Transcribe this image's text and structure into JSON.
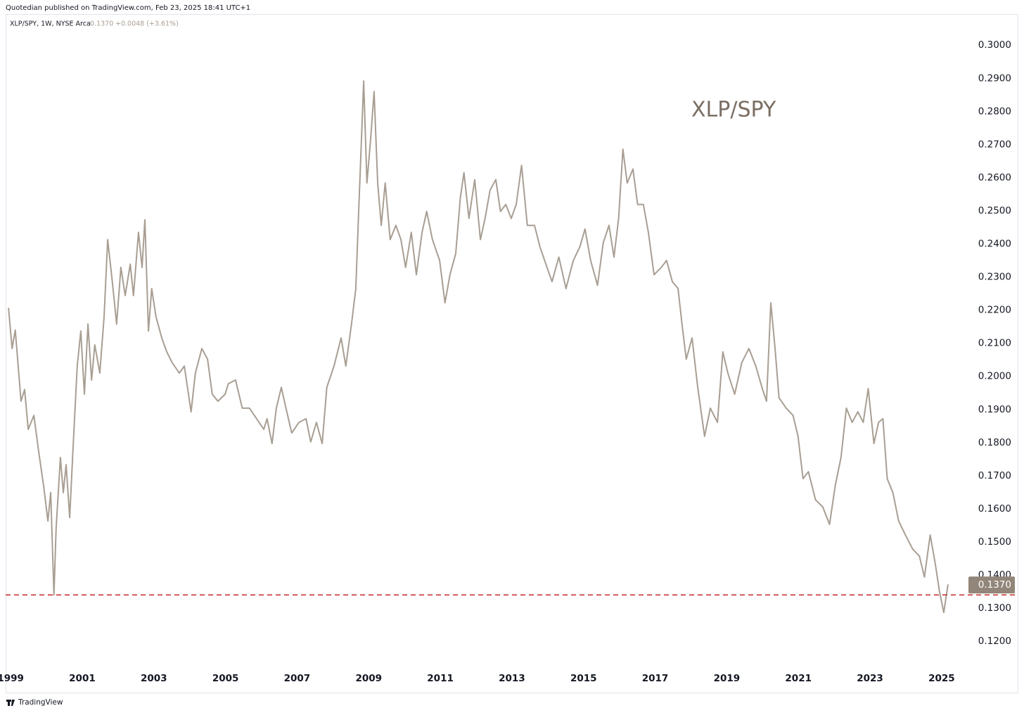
{
  "chart_data": {
    "type": "line",
    "header": {
      "publisher": "Quotedian published on TradingView.com, Feb 23, 2025 18:41 UTC+1",
      "symbol": "XLP/SPY, 1W, NYSE Arca",
      "change": "+0.0048 (+3.61%)"
    },
    "annotation": "XLP/SPY",
    "footer": "TradingView",
    "color": "#a89e93",
    "grid": false,
    "x": [
      1998.94,
      1999.04,
      1999.13,
      1999.29,
      1999.39,
      1999.49,
      1999.65,
      1999.78,
      1999.92,
      2000.04,
      2000.12,
      2000.21,
      2000.27,
      2000.39,
      2000.47,
      2000.55,
      2000.65,
      2000.74,
      2000.86,
      2000.96,
      2001.06,
      2001.16,
      2001.26,
      2001.35,
      2001.49,
      2001.61,
      2001.71,
      2001.84,
      2001.96,
      2002.08,
      2002.2,
      2002.34,
      2002.43,
      2002.57,
      2002.67,
      2002.75,
      2002.85,
      2002.94,
      2003.06,
      2003.22,
      2003.36,
      2003.51,
      2003.71,
      2003.85,
      2004.04,
      2004.16,
      2004.34,
      2004.5,
      2004.63,
      2004.79,
      2004.99,
      2005.08,
      2005.28,
      2005.47,
      2005.67,
      2005.87,
      2006.07,
      2006.16,
      2006.3,
      2006.42,
      2006.56,
      2006.69,
      2006.85,
      2007.05,
      2007.25,
      2007.38,
      2007.54,
      2007.7,
      2007.83,
      2008.03,
      2008.23,
      2008.36,
      2008.52,
      2008.64,
      2008.72,
      2008.78,
      2008.86,
      2008.95,
      2009.05,
      2009.15,
      2009.25,
      2009.35,
      2009.46,
      2009.6,
      2009.76,
      2009.9,
      2010.03,
      2010.19,
      2010.33,
      2010.49,
      2010.62,
      2010.78,
      2010.98,
      2011.13,
      2011.27,
      2011.43,
      2011.56,
      2011.66,
      2011.8,
      2011.96,
      2012.12,
      2012.25,
      2012.39,
      2012.55,
      2012.68,
      2012.83,
      2012.98,
      2013.12,
      2013.27,
      2013.43,
      2013.63,
      2013.78,
      2013.98,
      2014.12,
      2014.31,
      2014.51,
      2014.71,
      2014.9,
      2015.04,
      2015.2,
      2015.39,
      2015.55,
      2015.71,
      2015.85,
      2015.98,
      2016.1,
      2016.22,
      2016.38,
      2016.51,
      2016.67,
      2016.81,
      2016.97,
      2017.17,
      2017.32,
      2017.48,
      2017.64,
      2017.75,
      2017.87,
      2018.03,
      2018.19,
      2018.38,
      2018.54,
      2018.74,
      2018.89,
      2019.03,
      2019.22,
      2019.42,
      2019.62,
      2019.81,
      2020.01,
      2020.11,
      2020.23,
      2020.34,
      2020.46,
      2020.66,
      2020.85,
      2020.99,
      2021.13,
      2021.28,
      2021.48,
      2021.68,
      2021.87,
      2022.03,
      2022.19,
      2022.34,
      2022.5,
      2022.66,
      2022.81,
      2022.95,
      2023.11,
      2023.24,
      2023.36,
      2023.48,
      2023.64,
      2023.8,
      2023.99,
      2024.19,
      2024.38,
      2024.52,
      2024.68,
      2024.82,
      2024.94,
      2025.06,
      2025.18
    ],
    "values": [
      0.2207,
      0.2084,
      0.214,
      0.1925,
      0.196,
      0.184,
      0.1882,
      0.1776,
      0.167,
      0.1563,
      0.1649,
      0.134,
      0.1542,
      0.1755,
      0.1649,
      0.1733,
      0.1574,
      0.1776,
      0.2031,
      0.2137,
      0.1946,
      0.2158,
      0.1989,
      0.2095,
      0.201,
      0.218,
      0.2413,
      0.2286,
      0.2158,
      0.2329,
      0.2244,
      0.2339,
      0.2244,
      0.2435,
      0.2329,
      0.2473,
      0.2137,
      0.2265,
      0.218,
      0.2116,
      0.2074,
      0.2042,
      0.201,
      0.2031,
      0.1893,
      0.201,
      0.2084,
      0.2052,
      0.1946,
      0.1925,
      0.1946,
      0.1978,
      0.1989,
      0.1904,
      0.1904,
      0.1872,
      0.184,
      0.1872,
      0.1797,
      0.1904,
      0.1967,
      0.1904,
      0.1829,
      0.1861,
      0.1872,
      0.1802,
      0.1861,
      0.1797,
      0.1967,
      0.2031,
      0.2116,
      0.2031,
      0.2158,
      0.2265,
      0.2498,
      0.2669,
      0.2892,
      0.2584,
      0.2711,
      0.286,
      0.2584,
      0.2456,
      0.2584,
      0.2413,
      0.2456,
      0.2413,
      0.2329,
      0.2435,
      0.2307,
      0.2435,
      0.2498,
      0.2413,
      0.235,
      0.2222,
      0.2307,
      0.2371,
      0.2541,
      0.2615,
      0.2477,
      0.2594,
      0.2413,
      0.2477,
      0.2562,
      0.2594,
      0.2498,
      0.2519,
      0.2477,
      0.2519,
      0.2637,
      0.2456,
      0.2456,
      0.2392,
      0.2329,
      0.2286,
      0.236,
      0.2265,
      0.2349,
      0.2392,
      0.2445,
      0.2349,
      0.2275,
      0.2403,
      0.2456,
      0.236,
      0.2477,
      0.2686,
      0.2584,
      0.2626,
      0.2519,
      0.2519,
      0.2435,
      0.2307,
      0.2329,
      0.235,
      0.2286,
      0.2265,
      0.2158,
      0.2052,
      0.2116,
      0.1967,
      0.1819,
      0.1904,
      0.1861,
      0.2074,
      0.201,
      0.1946,
      0.2042,
      0.2084,
      0.2031,
      0.1957,
      0.1925,
      0.2222,
      0.2095,
      0.1935,
      0.1904,
      0.1882,
      0.1819,
      0.1691,
      0.1712,
      0.1627,
      0.1606,
      0.1553,
      0.167,
      0.1755,
      0.1904,
      0.1861,
      0.1893,
      0.1861,
      0.1963,
      0.1797,
      0.1861,
      0.1872,
      0.1691,
      0.1649,
      0.1563,
      0.1521,
      0.1479,
      0.1457,
      0.1394,
      0.1521,
      0.1436,
      0.1351,
      0.1287,
      0.1372
    ],
    "last_value": {
      "value": 0.137,
      "label": "0.1370"
    },
    "hline": {
      "value": 0.134,
      "color": "#c62828"
    },
    "xlim": [
      1998.86,
      2025.71
    ],
    "xticks": [
      1999,
      2001,
      2003,
      2005,
      2007,
      2009,
      2011,
      2013,
      2015,
      2017,
      2019,
      2021,
      2023,
      2025
    ],
    "ylim": [
      0.1128,
      0.3094
    ],
    "yticks": [
      {
        "value": 0.12,
        "label": "0.1200"
      },
      {
        "value": 0.13,
        "label": "0.1300"
      },
      {
        "value": 0.14,
        "label": "0.1400"
      },
      {
        "value": 0.15,
        "label": "0.1500"
      },
      {
        "value": 0.16,
        "label": "0.1600"
      },
      {
        "value": 0.17,
        "label": "0.1700"
      },
      {
        "value": 0.18,
        "label": "0.1800"
      },
      {
        "value": 0.19,
        "label": "0.1900"
      },
      {
        "value": 0.2,
        "label": "0.2000"
      },
      {
        "value": 0.21,
        "label": "0.2100"
      },
      {
        "value": 0.22,
        "label": "0.2200"
      },
      {
        "value": 0.23,
        "label": "0.2300"
      },
      {
        "value": 0.24,
        "label": "0.2400"
      },
      {
        "value": 0.25,
        "label": "0.2500"
      },
      {
        "value": 0.26,
        "label": "0.2600"
      },
      {
        "value": 0.27,
        "label": "0.2700"
      },
      {
        "value": 0.28,
        "label": "0.2800"
      },
      {
        "value": 0.29,
        "label": "0.2900"
      },
      {
        "value": 0.3,
        "label": "0.3000"
      }
    ]
  }
}
